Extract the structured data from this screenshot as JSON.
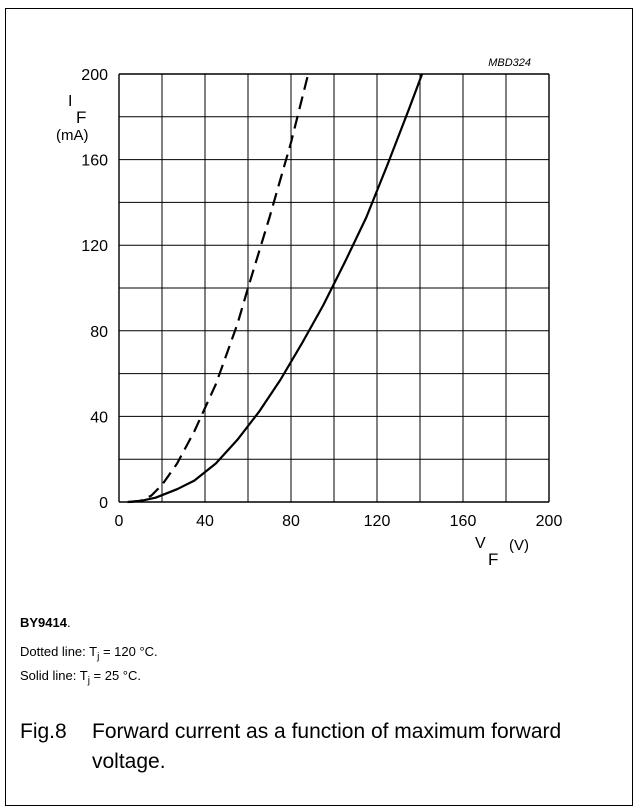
{
  "chart_data": {
    "type": "line",
    "code": "MBD324",
    "x_unit_label": "(V)",
    "y_unit_label": "(mA)",
    "xlim": [
      0,
      200
    ],
    "ylim": [
      0,
      200
    ],
    "x_ticks": [
      "0",
      "40",
      "80",
      "120",
      "160",
      "200"
    ],
    "y_ticks": [
      "0",
      "40",
      "80",
      "120",
      "160",
      "200"
    ],
    "grid": true,
    "series": [
      {
        "style": "dashed",
        "points": [
          [
            5,
            0
          ],
          [
            10,
            0.5
          ],
          [
            15,
            3
          ],
          [
            20,
            8
          ],
          [
            27,
            18
          ],
          [
            35,
            33
          ],
          [
            45,
            55
          ],
          [
            55,
            83
          ],
          [
            60,
            100
          ],
          [
            70,
            133
          ],
          [
            80,
            168
          ],
          [
            88,
            200
          ]
        ]
      },
      {
        "style": "solid",
        "points": [
          [
            4,
            0
          ],
          [
            10,
            0.5
          ],
          [
            17,
            2
          ],
          [
            27,
            6
          ],
          [
            35,
            10
          ],
          [
            45,
            18
          ],
          [
            55,
            29
          ],
          [
            65,
            42
          ],
          [
            75,
            57
          ],
          [
            85,
            74
          ],
          [
            95,
            92
          ],
          [
            105,
            112
          ],
          [
            115,
            133
          ],
          [
            125,
            158
          ],
          [
            135,
            184
          ],
          [
            141,
            200
          ]
        ]
      }
    ]
  },
  "notes": {
    "title": "BY9414",
    "title_suffix": ".",
    "dotted_prefix": "Dotted line: T",
    "dotted_sub": "j",
    "dotted_value": " = 120 °C.",
    "solid_prefix": "Solid line: T",
    "solid_sub": "j",
    "solid_value": " = 25 °C."
  },
  "caption": {
    "number": "Fig.8",
    "text": "Forward current as a function of maximum forward voltage."
  }
}
